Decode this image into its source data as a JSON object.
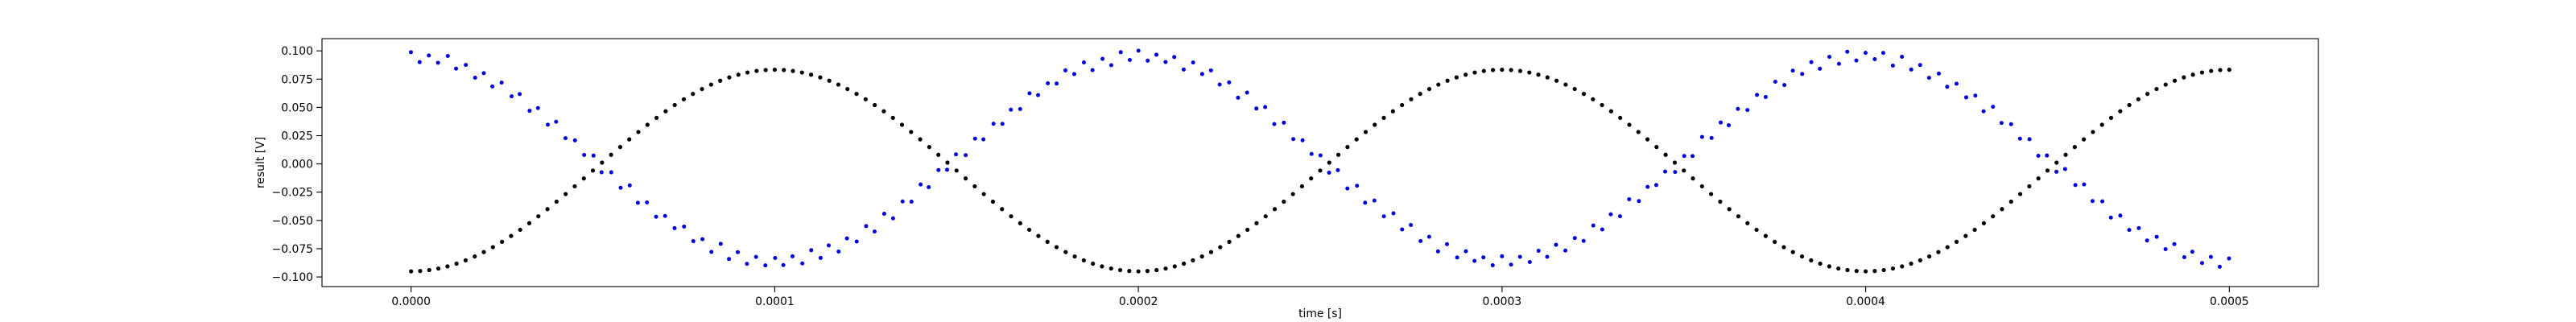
{
  "chart_data": {
    "type": "scatter",
    "title": "",
    "xlabel": "time [s]",
    "ylabel": "result [V]",
    "xlim": [
      -2.45e-05,
      0.0005245
    ],
    "ylim": [
      -0.1085,
      0.1108
    ],
    "x_ticks": [
      0.0,
      0.0001,
      0.0002,
      0.0003,
      0.0004,
      0.0005
    ],
    "x_tick_labels": [
      "0.0000",
      "0.0001",
      "0.0002",
      "0.0003",
      "0.0004",
      "0.0005"
    ],
    "y_ticks": [
      -0.1,
      -0.075,
      -0.05,
      -0.025,
      0.0,
      0.025,
      0.05,
      0.075,
      0.1
    ],
    "y_tick_labels": [
      "−0.100",
      "−0.075",
      "−0.050",
      "−0.025",
      "0.000",
      "0.025",
      "0.050",
      "0.075",
      "0.100"
    ],
    "grid": false,
    "series": [
      {
        "color": "#000000",
        "marker": "dot",
        "sampling": "x from 0 to 0.0005 s in 0.0000025 s steps",
        "points": [
          [
            0.0,
            -0.095
          ],
          [
            5e-05,
            -0.0063
          ],
          [
            0.0001,
            0.0833
          ],
          [
            0.00015,
            -0.0063
          ],
          [
            0.0002,
            -0.095
          ],
          [
            0.00025,
            -0.0063
          ],
          [
            0.0003,
            0.0833
          ],
          [
            0.00035,
            -0.0063
          ],
          [
            0.0004,
            -0.095
          ],
          [
            0.00045,
            -0.0063
          ],
          [
            0.0005,
            0.0833
          ]
        ]
      },
      {
        "color": "#0000dd",
        "marker": "dot",
        "sampling": "x from 0 to 0.0005 s in 0.0000025 s steps, scattered in a band about 0.008 V wide",
        "points": [
          [
            0.0,
            0.094
          ],
          [
            5e-05,
            -0.001
          ],
          [
            0.0001,
            -0.086
          ],
          [
            0.00015,
            0.002
          ],
          [
            0.0002,
            0.095
          ],
          [
            0.00025,
            0.0
          ],
          [
            0.0003,
            -0.086
          ],
          [
            0.00035,
            0.001
          ],
          [
            0.0004,
            0.095
          ],
          [
            0.00045,
            0.0
          ],
          [
            0.0005,
            -0.084
          ]
        ]
      }
    ]
  }
}
